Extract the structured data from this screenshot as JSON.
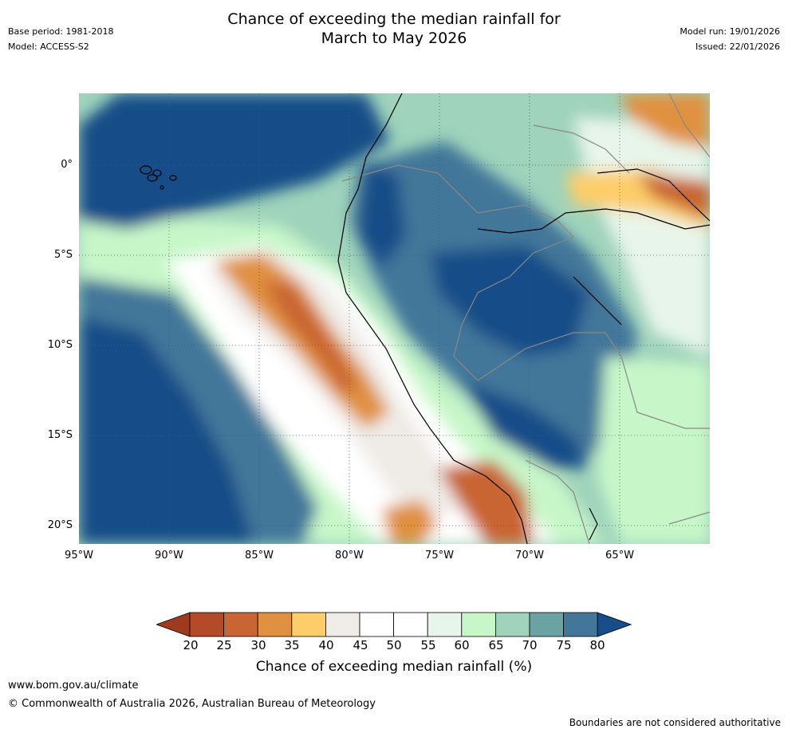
{
  "title_line1": "Chance of exceeding the median rainfall for",
  "title_line2": "March to May 2026",
  "left_meta": {
    "base_period": "Base period: 1981-2018",
    "model": "Model: ACCESS-S2"
  },
  "right_meta": {
    "model_run": "Model run: 19/01/2026",
    "issued": "Issued: 22/01/2026"
  },
  "map": {
    "lat_labels": [
      "0°",
      "5°S",
      "10°S",
      "15°S",
      "20°S"
    ],
    "lon_labels": [
      "95°W",
      "90°W",
      "85°W",
      "80°W",
      "75°W",
      "70°W",
      "65°W"
    ],
    "extent": {
      "lon_min": -95,
      "lon_max": -60,
      "lat_min": -21,
      "lat_max": 4
    }
  },
  "colorbar": {
    "tick_labels": [
      "20",
      "25",
      "30",
      "35",
      "40",
      "45",
      "50",
      "55",
      "60",
      "65",
      "70",
      "75",
      "80"
    ],
    "colors": [
      "#9e3b1f",
      "#b34a28",
      "#c96532",
      "#e0913f",
      "#fdcd69",
      "#efebe7",
      "#ffffff",
      "#ffffff",
      "#e8f5ea",
      "#c7f7c9",
      "#9fd3bb",
      "#6ba3a5",
      "#43779a",
      "#174d88"
    ],
    "label": "Chance of exceeding median rainfall (%)"
  },
  "footer": {
    "url": "www.bom.gov.au/climate",
    "copyright": "© Commonwealth of Australia 2026, Australian Bureau of Meteorology",
    "disclaimer": "Boundaries are not considered authoritative"
  }
}
